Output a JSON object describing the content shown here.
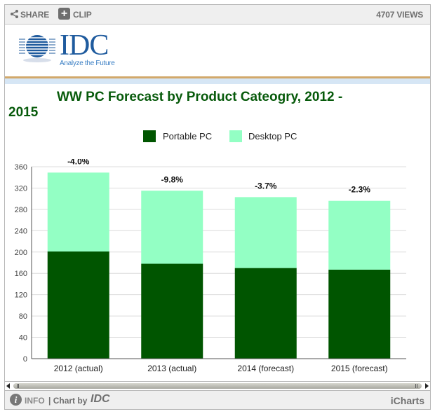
{
  "toolbar": {
    "share_label": "SHARE",
    "clip_label": "CLIP",
    "views_label": "4707 VIEWS"
  },
  "logo": {
    "name": "IDC",
    "tagline": "Analyze the Future"
  },
  "colors": {
    "portable": "#005500",
    "desktop": "#93ffc4",
    "title": "#075a0b",
    "gold_rule": "#d2a86a"
  },
  "chart_data": {
    "type": "bar",
    "stacked": true,
    "title_line1": "WW PC Forecast by Product Cateogry, 2012 -",
    "title_line2": "2015",
    "xlabel": "",
    "ylabel": "",
    "ylim": [
      0,
      360
    ],
    "yticks": [
      0,
      40,
      80,
      120,
      160,
      200,
      240,
      280,
      320,
      360
    ],
    "grid": true,
    "legend_position": "top-center",
    "categories": [
      "2012 (actual)",
      "2013 (actual)",
      "2014 (forecast)",
      "2015 (forecast)"
    ],
    "series": [
      {
        "name": "Portable PC",
        "values": [
          201,
          178,
          170,
          167
        ]
      },
      {
        "name": "Desktop PC",
        "values": [
          148,
          137,
          133,
          129
        ]
      }
    ],
    "annotations": [
      "-4.0%",
      "-9.8%",
      "-3.7%",
      "-2.3%"
    ]
  },
  "footer": {
    "info_label": "INFO",
    "chart_by_label": "| Chart by",
    "chart_by_brand": "IDC",
    "provider": "iCharts"
  }
}
